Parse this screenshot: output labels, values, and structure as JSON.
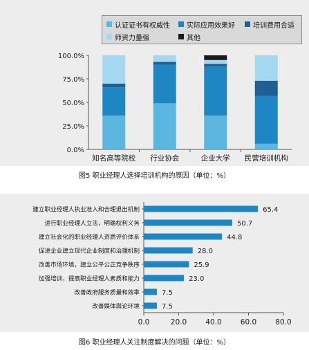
{
  "chart_data": [
    {
      "type": "bar",
      "stacked": true,
      "categories": [
        "知名高等院校",
        "行业协会",
        "企业大学",
        "民营培训机构"
      ],
      "series": [
        {
          "name": "认证证书有权威性",
          "color": "#5bb7e0",
          "values": [
            36,
            49,
            36,
            6
          ]
        },
        {
          "name": "实际应用效果好",
          "color": "#1f86c4",
          "values": [
            30,
            41,
            52,
            51
          ]
        },
        {
          "name": "培训费用合适",
          "color": "#1f5f96",
          "values": [
            4,
            3,
            3,
            16
          ]
        },
        {
          "name": "师资力量强",
          "color": "#a4d8f1",
          "values": [
            30,
            7,
            4,
            27
          ]
        },
        {
          "name": "其他",
          "color": "#1a1a1a",
          "values": [
            0,
            0,
            5,
            0
          ]
        }
      ],
      "yticks": [
        "0.0%",
        "25.0%",
        "50.0%",
        "75.0%",
        "100.0%"
      ],
      "ylim": [
        0,
        100
      ],
      "grid": false,
      "legend": "top",
      "caption": "图5 职业经理人选择培训机构的原因（单位：%）"
    },
    {
      "type": "bar",
      "orientation": "horizontal",
      "categories": [
        "建立职业经理人执业准入和合理退出机制",
        "进行职业经理人立法，明确权利义务",
        "建立社会化的职业经理人资质评价体系",
        "促进企业建立现代企业制度和治理机制",
        "改善市场环境，建立公平公正竞争秩序",
        "加强培训，提高职业经理人素质和能力",
        "改善政府服务质量和效率",
        "改善媒体舆论环境"
      ],
      "values": [
        65.4,
        50.7,
        44.8,
        28.0,
        25.9,
        23.0,
        7.5,
        7.5
      ],
      "value_labels": [
        "65.4",
        "50.7",
        "44.8",
        "28.0",
        "25.9",
        "23.0",
        "7.5",
        "7.5"
      ],
      "color": "#1f86c4",
      "xticks": [
        "0.0",
        "20.0",
        "40.0",
        "60.0",
        "80.0"
      ],
      "xlim": [
        0,
        80
      ],
      "grid": false,
      "caption": "图6 职业经理人关注制度解决的问题（单位：%）"
    }
  ]
}
